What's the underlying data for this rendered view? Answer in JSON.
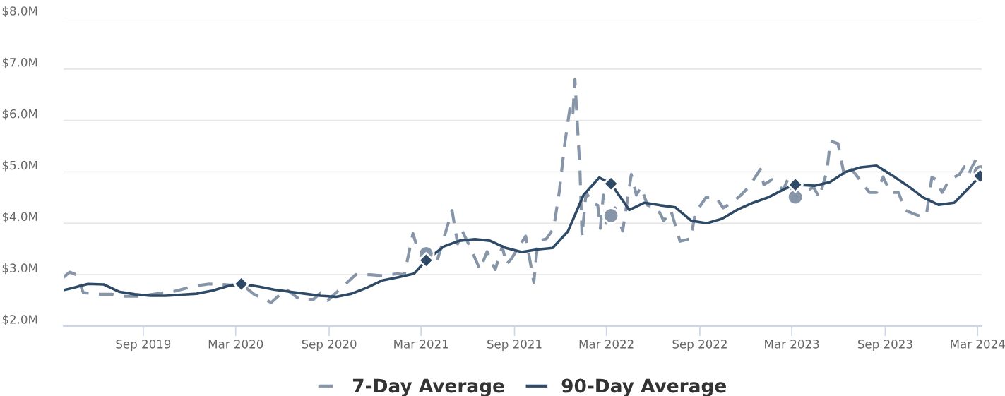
{
  "chart_data": {
    "type": "line",
    "xlim": [
      "2019-03-28",
      "2024-03-09"
    ],
    "xticks": [
      {
        "value": "2019-09-01",
        "label": "Sep 2019"
      },
      {
        "value": "2020-03-01",
        "label": "Mar 2020"
      },
      {
        "value": "2020-09-01",
        "label": "Sep 2020"
      },
      {
        "value": "2021-03-01",
        "label": "Mar 2021"
      },
      {
        "value": "2021-09-01",
        "label": "Sep 2021"
      },
      {
        "value": "2022-03-01",
        "label": "Mar 2022"
      },
      {
        "value": "2022-09-01",
        "label": "Sep 2022"
      },
      {
        "value": "2023-03-01",
        "label": "Mar 2023"
      },
      {
        "value": "2023-09-01",
        "label": "Sep 2023"
      },
      {
        "value": "2024-03-01",
        "label": "Mar 2024"
      }
    ],
    "ylim": [
      2.0,
      8.0
    ],
    "yticks": [
      {
        "value": 2,
        "label": "$2.0M"
      },
      {
        "value": 3,
        "label": "$3.0M"
      },
      {
        "value": 4,
        "label": "$4.0M"
      },
      {
        "value": 5,
        "label": "$5.0M"
      },
      {
        "value": 6,
        "label": "$6.0M"
      },
      {
        "value": 7,
        "label": "$7.0M"
      },
      {
        "value": 8,
        "label": "$8.0M"
      }
    ],
    "grid": "y",
    "legend": "bottom",
    "series": [
      {
        "name": "7-Day Average",
        "color": "#8795a8",
        "line_style": "dashed",
        "x": [
          "2019-03-28",
          "2019-04-09",
          "2019-04-22",
          "2019-05-06",
          "2019-06-04",
          "2019-07-01",
          "2019-07-27",
          "2019-08-24",
          "2019-09-21",
          "2019-11-02",
          "2019-12-12",
          "2020-01-09",
          "2020-02-20",
          "2020-03-12",
          "2020-04-06",
          "2020-05-10",
          "2020-06-08",
          "2020-07-05",
          "2020-08-01",
          "2020-08-15",
          "2020-08-29",
          "2020-09-26",
          "2020-10-23",
          "2020-11-20",
          "2020-12-16",
          "2021-01-13",
          "2021-01-27",
          "2021-02-13",
          "2021-02-24",
          "2021-03-11",
          "2021-03-25",
          "2021-04-01",
          "2021-05-01",
          "2021-05-12",
          "2021-05-21",
          "2021-06-05",
          "2021-06-25",
          "2021-07-09",
          "2021-07-25",
          "2021-08-08",
          "2021-08-16",
          "2021-08-25",
          "2021-09-23",
          "2021-10-09",
          "2021-10-17",
          "2021-11-03",
          "2021-11-17",
          "2021-11-28",
          "2021-12-09",
          "2021-12-20",
          "2021-12-25",
          "2021-12-29",
          "2022-01-08",
          "2022-01-12",
          "2022-01-20",
          "2022-02-01",
          "2022-02-12",
          "2022-02-17",
          "2022-02-23",
          "2022-03-01",
          "2022-03-10",
          "2022-03-18",
          "2022-04-02",
          "2022-04-19",
          "2022-04-29",
          "2022-05-08",
          "2022-05-21",
          "2022-06-09",
          "2022-06-22",
          "2022-07-06",
          "2022-07-24",
          "2022-08-14",
          "2022-08-23",
          "2022-09-13",
          "2022-10-03",
          "2022-10-17",
          "2022-11-03",
          "2022-11-21",
          "2022-12-06",
          "2022-12-29",
          "2023-01-05",
          "2023-01-21",
          "2023-02-12",
          "2023-02-21",
          "2023-03-03",
          "2023-03-08",
          "2023-03-22",
          "2023-04-13",
          "2023-04-24",
          "2023-05-09",
          "2023-05-16",
          "2023-05-31",
          "2023-06-13",
          "2023-06-27",
          "2023-08-01",
          "2023-08-15",
          "2023-08-28",
          "2023-09-11",
          "2023-09-27",
          "2023-10-11",
          "2023-11-05",
          "2023-11-21",
          "2023-12-02",
          "2023-12-10",
          "2023-12-22",
          "2024-01-06",
          "2024-01-25",
          "2024-02-04",
          "2024-02-12",
          "2024-02-27",
          "2024-03-06"
        ],
        "values": [
          2.95,
          3.05,
          3.0,
          2.65,
          2.62,
          2.62,
          2.58,
          2.58,
          2.62,
          2.68,
          2.78,
          2.82,
          2.8,
          2.82,
          2.62,
          2.46,
          2.72,
          2.52,
          2.52,
          2.65,
          2.5,
          2.75,
          3.0,
          3.0,
          2.98,
          3.02,
          3.0,
          3.8,
          3.45,
          3.41,
          3.2,
          3.25,
          4.25,
          3.6,
          3.85,
          3.55,
          3.1,
          3.45,
          3.1,
          3.55,
          3.2,
          3.3,
          3.75,
          2.85,
          3.65,
          3.7,
          3.9,
          4.6,
          5.55,
          6.3,
          6.15,
          6.8,
          5.0,
          3.75,
          4.6,
          4.4,
          4.35,
          3.9,
          4.55,
          4.0,
          4.15,
          4.3,
          3.85,
          4.95,
          4.55,
          4.7,
          4.35,
          4.3,
          4.05,
          4.25,
          3.65,
          3.7,
          4.2,
          4.5,
          4.5,
          4.3,
          4.4,
          4.55,
          4.7,
          5.05,
          4.75,
          4.85,
          4.65,
          4.85,
          4.6,
          4.51,
          4.6,
          4.7,
          4.5,
          5.0,
          5.6,
          5.55,
          4.9,
          5.05,
          4.6,
          4.6,
          4.9,
          4.6,
          4.6,
          4.25,
          4.15,
          4.15,
          4.9,
          4.85,
          4.6,
          4.85,
          4.95,
          5.1,
          4.95,
          5.25,
          5.0
        ]
      },
      {
        "name": "90-Day Average",
        "color": "#2f4a66",
        "line_style": "solid",
        "x": [
          "2019-03-28",
          "2019-04-15",
          "2019-05-15",
          "2019-06-15",
          "2019-07-15",
          "2019-08-15",
          "2019-09-15",
          "2019-10-15",
          "2019-11-15",
          "2019-12-15",
          "2020-01-15",
          "2020-02-15",
          "2020-03-12",
          "2020-04-15",
          "2020-05-15",
          "2020-06-15",
          "2020-07-15",
          "2020-08-15",
          "2020-09-15",
          "2020-10-15",
          "2020-11-15",
          "2020-12-15",
          "2021-01-15",
          "2021-02-15",
          "2021-03-11",
          "2021-04-15",
          "2021-05-15",
          "2021-06-15",
          "2021-07-15",
          "2021-08-15",
          "2021-09-15",
          "2021-10-15",
          "2021-11-15",
          "2021-12-15",
          "2022-01-15",
          "2022-02-15",
          "2022-03-10",
          "2022-04-15",
          "2022-05-15",
          "2022-06-15",
          "2022-07-15",
          "2022-08-15",
          "2022-09-15",
          "2022-10-15",
          "2022-11-15",
          "2022-12-15",
          "2023-01-15",
          "2023-02-15",
          "2023-03-08",
          "2023-04-15",
          "2023-05-15",
          "2023-06-15",
          "2023-07-15",
          "2023-08-15",
          "2023-09-15",
          "2023-10-15",
          "2023-11-15",
          "2023-12-15",
          "2024-01-15",
          "2024-02-15",
          "2024-03-06"
        ],
        "values": [
          2.7,
          2.74,
          2.82,
          2.81,
          2.67,
          2.62,
          2.59,
          2.59,
          2.61,
          2.63,
          2.69,
          2.78,
          2.82,
          2.77,
          2.71,
          2.67,
          2.63,
          2.59,
          2.57,
          2.63,
          2.75,
          2.89,
          2.95,
          3.02,
          3.28,
          3.55,
          3.66,
          3.69,
          3.66,
          3.52,
          3.44,
          3.49,
          3.52,
          3.84,
          4.55,
          4.89,
          4.77,
          4.26,
          4.4,
          4.35,
          4.31,
          4.05,
          4.0,
          4.09,
          4.27,
          4.4,
          4.51,
          4.67,
          4.75,
          4.73,
          4.8,
          5.0,
          5.09,
          5.12,
          4.93,
          4.73,
          4.5,
          4.36,
          4.4,
          4.71,
          4.92
        ]
      },
      {
        "type": "scatter",
        "marker": "circle",
        "color": "#8795a8",
        "x": [
          "2021-03-11",
          "2022-03-10",
          "2023-03-08",
          "2024-03-06"
        ],
        "values": [
          3.41,
          4.15,
          4.51,
          5.0
        ]
      },
      {
        "type": "scatter",
        "marker": "diamond",
        "color": "#2f4a66",
        "x": [
          "2020-03-12",
          "2021-03-11",
          "2022-03-10",
          "2023-03-08",
          "2024-03-06"
        ],
        "values": [
          2.82,
          3.28,
          4.77,
          4.75,
          4.92
        ]
      }
    ]
  }
}
